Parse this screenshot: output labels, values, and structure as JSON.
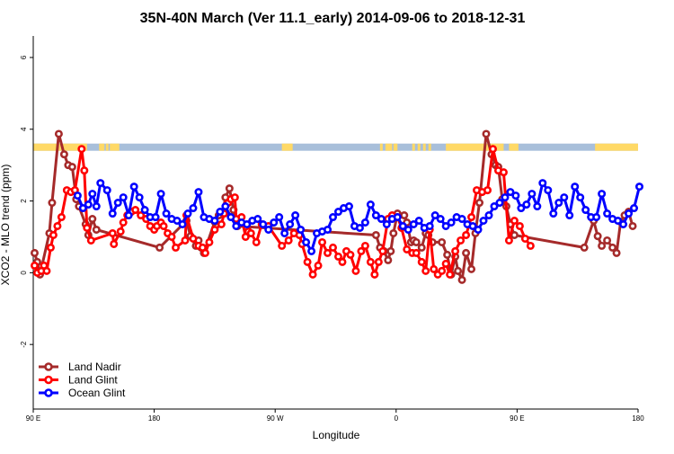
{
  "chart_data": {
    "type": "line",
    "title": "35N-40N March (Ver 11.1_early)   2014-09-06 to 2018-12-31",
    "xlabel": "Longitude",
    "ylabel": "XCO2 - MLO trend (ppm)",
    "xlim": [
      90,
      540
    ],
    "ylim": [
      -3.8,
      6.6
    ],
    "x_ticks": [
      {
        "value": 90,
        "label": "90 E"
      },
      {
        "value": 180,
        "label": "180"
      },
      {
        "value": 270,
        "label": "90 W"
      },
      {
        "value": 360,
        "label": "0"
      },
      {
        "value": 450,
        "label": "90 E"
      },
      {
        "value": 540,
        "label": "180"
      }
    ],
    "y_ticks": [
      {
        "value": -2,
        "label": "-2"
      },
      {
        "value": 0,
        "label": "0"
      },
      {
        "value": 2,
        "label": "2"
      },
      {
        "value": 4,
        "label": "4"
      },
      {
        "value": 6,
        "label": "6"
      }
    ],
    "grid": false,
    "legend_position": "bottom-left",
    "land_ocean_band": {
      "y_range": [
        3.4,
        3.6
      ],
      "land_color": "#FFD966",
      "ocean_color": "#A8BFDA",
      "land_segments": [
        [
          90,
          130
        ],
        [
          139,
          143
        ],
        [
          144,
          146
        ],
        [
          147,
          154
        ],
        [
          275,
          283
        ],
        [
          348,
          350
        ],
        [
          352,
          357
        ],
        [
          358,
          361
        ],
        [
          372,
          374
        ],
        [
          376,
          378
        ],
        [
          380,
          382
        ],
        [
          384,
          386
        ],
        [
          397,
          440
        ],
        [
          444,
          451
        ],
        [
          508,
          544
        ]
      ]
    },
    "series": [
      {
        "name": "Land Nadir",
        "color": "#A52A2A",
        "x": [
          91,
          93,
          95,
          102,
          104,
          109,
          113,
          116,
          119,
          122,
          124,
          129,
          131,
          134,
          137,
          184,
          204,
          207,
          211,
          213,
          215,
          217,
          225,
          228,
          231,
          233,
          236,
          239,
          242,
          345,
          348,
          351,
          354,
          356,
          358,
          361,
          366,
          368,
          371,
          373,
          375,
          379,
          382,
          384,
          387,
          394,
          398,
          401,
          404,
          406,
          409,
          412,
          416,
          419,
          422,
          427,
          431,
          434,
          436,
          439,
          442,
          445,
          448,
          500,
          507,
          510,
          513,
          517,
          521,
          524,
          527,
          530,
          533,
          536
        ],
        "y": [
          0.55,
          0.3,
          -0.05,
          1.1,
          1.95,
          3.87,
          3.3,
          3.0,
          2.95,
          2.05,
          1.85,
          1.35,
          1.05,
          1.5,
          1.2,
          0.7,
          1.45,
          1.02,
          0.75,
          0.9,
          0.7,
          0.55,
          1.42,
          1.6,
          1.7,
          2.1,
          2.35,
          1.75,
          1.3,
          1.05,
          0.7,
          0.6,
          0.35,
          0.6,
          1.1,
          1.65,
          1.6,
          1.4,
          0.85,
          0.9,
          0.85,
          0.7,
          1.1,
          1.05,
          0.85,
          0.85,
          0.5,
          -0.05,
          0.45,
          0.05,
          -0.2,
          0.55,
          0.1,
          1.1,
          1.95,
          3.87,
          3.3,
          3.0,
          2.95,
          2.05,
          1.85,
          1.35,
          1.05,
          0.7,
          1.45,
          1.02,
          0.75,
          0.9,
          0.7,
          0.55,
          1.42,
          1.6,
          1.7,
          1.3
        ]
      },
      {
        "name": "Land Glint",
        "color": "#FF0000",
        "x": [
          91,
          93,
          96,
          98,
          100,
          103,
          105,
          108,
          111,
          115,
          118,
          121,
          126,
          128,
          130,
          133,
          149,
          150,
          155,
          157,
          160,
          163,
          166,
          170,
          174,
          177,
          180,
          182,
          185,
          187,
          190,
          193,
          196,
          203,
          204,
          209,
          213,
          216,
          218,
          221,
          225,
          230,
          232,
          235,
          237,
          240,
          241,
          245,
          248,
          250,
          252,
          256,
          260,
          265,
          275,
          280,
          284,
          288,
          290,
          294,
          298,
          302,
          305,
          309,
          313,
          317,
          320,
          323,
          326,
          330,
          334,
          337,
          341,
          344,
          347,
          350,
          354,
          357,
          361,
          364,
          368,
          372,
          375,
          379,
          382,
          385,
          388,
          391,
          394,
          397,
          400,
          404,
          408,
          412,
          416,
          420,
          424,
          428,
          432,
          436,
          440,
          444,
          448,
          452,
          456,
          460
        ],
        "y": [
          0.2,
          0.0,
          0.05,
          0.2,
          0.05,
          0.7,
          1.05,
          1.3,
          1.55,
          2.3,
          2.25,
          2.3,
          3.45,
          2.85,
          1.25,
          0.9,
          1.1,
          0.8,
          1.15,
          1.4,
          1.6,
          1.7,
          1.75,
          1.6,
          1.5,
          1.3,
          1.2,
          1.3,
          1.4,
          1.3,
          1.1,
          1.0,
          0.7,
          0.9,
          1.6,
          0.95,
          0.75,
          0.7,
          0.55,
          0.85,
          1.2,
          1.35,
          1.65,
          1.95,
          2.05,
          2.1,
          1.5,
          1.55,
          1.0,
          1.15,
          1.1,
          0.85,
          1.35,
          1.3,
          0.75,
          0.9,
          1.1,
          1.05,
          0.8,
          0.3,
          -0.05,
          0.2,
          0.85,
          0.55,
          0.7,
          0.45,
          0.3,
          0.6,
          0.5,
          0.05,
          0.6,
          0.75,
          0.3,
          -0.05,
          0.3,
          0.6,
          1.5,
          1.6,
          1.55,
          1.25,
          0.65,
          0.55,
          0.55,
          0.3,
          0.05,
          1.2,
          0.1,
          -0.05,
          0.05,
          0.25,
          -0.05,
          0.6,
          0.9,
          1.05,
          1.55,
          2.3,
          2.25,
          2.3,
          3.45,
          2.85,
          2.8,
          0.9,
          1.45,
          1.3,
          0.95,
          0.75
        ]
      },
      {
        "name": "Ocean Glint",
        "color": "#0000FF",
        "x": [
          123,
          127,
          131,
          134,
          137,
          140,
          145,
          149,
          153,
          157,
          161,
          165,
          169,
          173,
          177,
          181,
          185,
          189,
          193,
          197,
          201,
          205,
          209,
          213,
          217,
          221,
          225,
          229,
          233,
          237,
          241,
          245,
          249,
          253,
          257,
          261,
          265,
          269,
          273,
          277,
          281,
          285,
          289,
          293,
          297,
          301,
          305,
          309,
          313,
          317,
          321,
          325,
          329,
          333,
          337,
          341,
          345,
          349,
          353,
          357,
          361,
          365,
          369,
          373,
          377,
          381,
          385,
          389,
          393,
          397,
          401,
          405,
          409,
          413,
          417,
          421,
          425,
          429,
          433,
          437,
          441,
          445,
          449,
          453,
          457,
          461,
          465,
          469,
          473,
          477,
          481,
          485,
          489,
          493,
          497,
          501,
          505,
          509,
          513,
          517,
          521,
          525,
          529,
          533,
          537,
          541
        ],
        "y": [
          2.15,
          1.8,
          1.9,
          2.2,
          1.85,
          2.5,
          2.3,
          1.65,
          1.95,
          2.1,
          1.6,
          2.4,
          2.1,
          1.75,
          1.55,
          1.55,
          2.2,
          1.65,
          1.5,
          1.45,
          1.35,
          1.65,
          1.8,
          2.25,
          1.55,
          1.5,
          1.45,
          1.7,
          1.85,
          1.55,
          1.3,
          1.4,
          1.35,
          1.45,
          1.5,
          1.35,
          1.2,
          1.4,
          1.55,
          1.1,
          1.35,
          1.6,
          1.2,
          0.85,
          0.6,
          1.1,
          1.15,
          1.2,
          1.55,
          1.7,
          1.8,
          1.85,
          1.3,
          1.25,
          1.4,
          1.9,
          1.6,
          1.5,
          1.35,
          1.5,
          1.55,
          1.3,
          1.2,
          1.35,
          1.45,
          1.25,
          1.3,
          1.6,
          1.5,
          1.3,
          1.4,
          1.55,
          1.5,
          1.35,
          1.3,
          1.2,
          1.45,
          1.6,
          1.85,
          1.95,
          2.1,
          2.25,
          2.15,
          1.8,
          1.9,
          2.2,
          1.85,
          2.5,
          2.3,
          1.65,
          1.95,
          2.1,
          1.6,
          2.4,
          2.1,
          1.75,
          1.55,
          1.55,
          2.2,
          1.65,
          1.5,
          1.45,
          1.35,
          1.65,
          1.8,
          2.4
        ]
      }
    ]
  }
}
